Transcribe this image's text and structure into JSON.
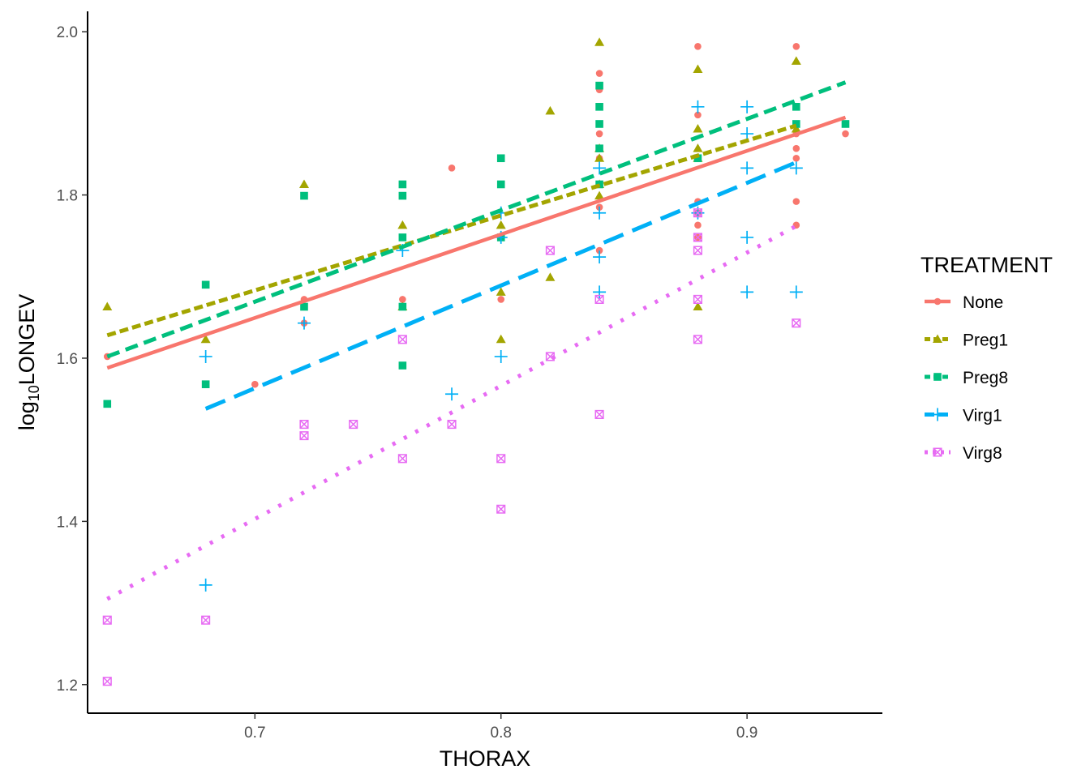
{
  "chart_data": {
    "type": "scatter",
    "xlabel": "THORAX",
    "ylabel_base": "log",
    "ylabel_sub": "10",
    "ylabel_rest": "LONGEV",
    "xlim": [
      0.632,
      0.955
    ],
    "ylim": [
      1.165,
      2.025
    ],
    "x_ticks": [
      0.7,
      0.8,
      0.9
    ],
    "x_tick_labels": [
      "0.7",
      "0.8",
      "0.9"
    ],
    "y_ticks": [
      1.2,
      1.4,
      1.6,
      1.8,
      2.0
    ],
    "y_tick_labels": [
      "1.2",
      "1.4",
      "1.6",
      "1.8",
      "2.0"
    ],
    "grid": false,
    "legend": {
      "title": "TREATMENT",
      "position": "right"
    },
    "series": [
      {
        "name": "None",
        "color": "#F8766D",
        "marker": "circle",
        "line": "solid",
        "fit": {
          "x": [
            0.64,
            0.94
          ],
          "y": [
            1.588,
            1.895
          ]
        },
        "points": [
          [
            0.64,
            1.602
          ],
          [
            0.7,
            1.568
          ],
          [
            0.72,
            1.643
          ],
          [
            0.72,
            1.672
          ],
          [
            0.76,
            1.672
          ],
          [
            0.76,
            1.663
          ],
          [
            0.78,
            1.833
          ],
          [
            0.8,
            1.672
          ],
          [
            0.8,
            1.748
          ],
          [
            0.84,
            1.949
          ],
          [
            0.84,
            1.929
          ],
          [
            0.84,
            1.875
          ],
          [
            0.84,
            1.845
          ],
          [
            0.84,
            1.813
          ],
          [
            0.84,
            1.785
          ],
          [
            0.84,
            1.732
          ],
          [
            0.88,
            1.982
          ],
          [
            0.88,
            1.898
          ],
          [
            0.88,
            1.792
          ],
          [
            0.88,
            1.778
          ],
          [
            0.88,
            1.763
          ],
          [
            0.88,
            1.748
          ],
          [
            0.92,
            1.982
          ],
          [
            0.92,
            1.875
          ],
          [
            0.92,
            1.857
          ],
          [
            0.92,
            1.845
          ],
          [
            0.92,
            1.792
          ],
          [
            0.92,
            1.763
          ],
          [
            0.94,
            1.875
          ]
        ]
      },
      {
        "name": "Preg1",
        "color": "#A3A500",
        "marker": "triangle",
        "line": "shortdash",
        "fit": {
          "x": [
            0.64,
            0.92
          ],
          "y": [
            1.628,
            1.885
          ]
        },
        "points": [
          [
            0.64,
            1.663
          ],
          [
            0.68,
            1.623
          ],
          [
            0.72,
            1.813
          ],
          [
            0.76,
            1.763
          ],
          [
            0.76,
            1.663
          ],
          [
            0.8,
            1.763
          ],
          [
            0.8,
            1.681
          ],
          [
            0.8,
            1.623
          ],
          [
            0.82,
            1.903
          ],
          [
            0.82,
            1.699
          ],
          [
            0.84,
            1.987
          ],
          [
            0.84,
            1.857
          ],
          [
            0.84,
            1.845
          ],
          [
            0.84,
            1.813
          ],
          [
            0.84,
            1.799
          ],
          [
            0.88,
            1.954
          ],
          [
            0.88,
            1.881
          ],
          [
            0.88,
            1.857
          ],
          [
            0.88,
            1.845
          ],
          [
            0.88,
            1.663
          ],
          [
            0.92,
            1.964
          ],
          [
            0.92,
            1.881
          ]
        ]
      },
      {
        "name": "Preg8",
        "color": "#00BF7D",
        "marker": "square",
        "line": "dash",
        "fit": {
          "x": [
            0.64,
            0.94
          ],
          "y": [
            1.602,
            1.938
          ]
        },
        "points": [
          [
            0.64,
            1.544
          ],
          [
            0.68,
            1.69
          ],
          [
            0.68,
            1.568
          ],
          [
            0.72,
            1.799
          ],
          [
            0.72,
            1.663
          ],
          [
            0.76,
            1.813
          ],
          [
            0.76,
            1.799
          ],
          [
            0.76,
            1.748
          ],
          [
            0.76,
            1.663
          ],
          [
            0.76,
            1.591
          ],
          [
            0.8,
            1.845
          ],
          [
            0.8,
            1.813
          ],
          [
            0.8,
            1.748
          ],
          [
            0.84,
            1.934
          ],
          [
            0.84,
            1.908
          ],
          [
            0.84,
            1.887
          ],
          [
            0.84,
            1.857
          ],
          [
            0.84,
            1.813
          ],
          [
            0.88,
            1.845
          ],
          [
            0.92,
            1.908
          ],
          [
            0.92,
            1.887
          ],
          [
            0.94,
            1.887
          ]
        ]
      },
      {
        "name": "Virg1",
        "color": "#00B0F6",
        "marker": "plus",
        "line": "longdash",
        "fit": {
          "x": [
            0.68,
            0.92
          ],
          "y": [
            1.538,
            1.84
          ]
        },
        "points": [
          [
            0.68,
            1.602
          ],
          [
            0.68,
            1.322
          ],
          [
            0.72,
            1.643
          ],
          [
            0.76,
            1.732
          ],
          [
            0.78,
            1.556
          ],
          [
            0.8,
            1.778
          ],
          [
            0.8,
            1.748
          ],
          [
            0.8,
            1.602
          ],
          [
            0.84,
            1.833
          ],
          [
            0.84,
            1.778
          ],
          [
            0.84,
            1.724
          ],
          [
            0.84,
            1.681
          ],
          [
            0.88,
            1.908
          ],
          [
            0.88,
            1.778
          ],
          [
            0.9,
            1.908
          ],
          [
            0.9,
            1.875
          ],
          [
            0.9,
            1.833
          ],
          [
            0.9,
            1.748
          ],
          [
            0.9,
            1.681
          ],
          [
            0.92,
            1.833
          ],
          [
            0.92,
            1.681
          ]
        ]
      },
      {
        "name": "Virg8",
        "color": "#E76BF3",
        "marker": "squarex",
        "line": "dotted",
        "fit": {
          "x": [
            0.64,
            0.92
          ],
          "y": [
            1.305,
            1.762
          ]
        },
        "points": [
          [
            0.64,
            1.279
          ],
          [
            0.64,
            1.204
          ],
          [
            0.68,
            1.279
          ],
          [
            0.72,
            1.519
          ],
          [
            0.72,
            1.505
          ],
          [
            0.74,
            1.519
          ],
          [
            0.76,
            1.623
          ],
          [
            0.76,
            1.477
          ],
          [
            0.78,
            1.519
          ],
          [
            0.8,
            1.477
          ],
          [
            0.8,
            1.415
          ],
          [
            0.82,
            1.732
          ],
          [
            0.82,
            1.602
          ],
          [
            0.84,
            1.672
          ],
          [
            0.84,
            1.531
          ],
          [
            0.88,
            1.778
          ],
          [
            0.88,
            1.748
          ],
          [
            0.88,
            1.732
          ],
          [
            0.88,
            1.672
          ],
          [
            0.88,
            1.623
          ],
          [
            0.92,
            1.643
          ]
        ]
      }
    ]
  }
}
